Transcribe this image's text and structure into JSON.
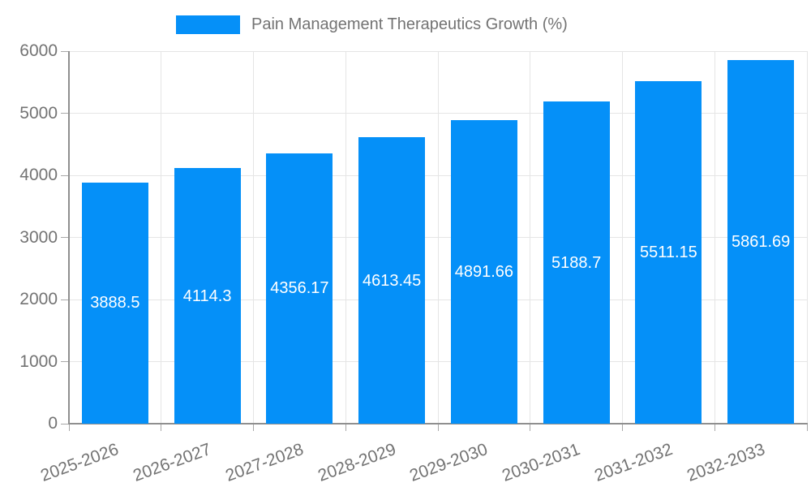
{
  "chart_data": {
    "type": "bar",
    "title": "Pain Management Therapeutics Growth (%)",
    "categories": [
      "2025-2026",
      "2026-2027",
      "2027-2028",
      "2028-2029",
      "2029-2030",
      "2030-2031",
      "2031-2032",
      "2032-2033"
    ],
    "values": [
      3888.5,
      4114.3,
      4356.17,
      4613.45,
      4891.66,
      5188.7,
      5511.15,
      5861.69
    ],
    "value_labels": [
      "3888.5",
      "4114.3",
      "4356.17",
      "4613.45",
      "4891.66",
      "5188.7",
      "5511.15",
      "5861.69"
    ],
    "xlabel": "",
    "ylabel": "",
    "ylim": [
      0,
      6000
    ],
    "ytick_step": 1000,
    "ytick_labels": [
      "0",
      "1000",
      "2000",
      "3000",
      "4000",
      "5000",
      "6000"
    ],
    "grid": true,
    "legend_position": "top-center",
    "xtick_rotation_deg": -20,
    "colors": {
      "bar": "#0590f8",
      "value_label": "#ffffff",
      "grid": "#e5e5e5",
      "axis_line": "#8f8f8f",
      "tick_mark": "#a8a8a8",
      "axis_text": "#737373",
      "background": "#ffffff"
    }
  }
}
